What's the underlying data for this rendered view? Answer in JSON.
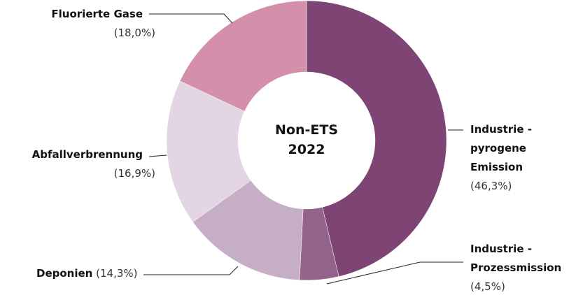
{
  "chart_data": {
    "type": "donut",
    "title": "Non-ETS 2022",
    "categories": [
      "Industrie - pyrogene Emission",
      "Industrie - Prozessmission",
      "Deponien",
      "Abfallverbrennung",
      "Fluorierte Gase"
    ],
    "values": [
      46.3,
      4.5,
      14.3,
      16.9,
      18.0
    ],
    "value_labels": [
      "(46,3%)",
      "(4,5%)",
      "(14,3%)",
      "(16,9%)",
      "(18,0%)"
    ],
    "colors": [
      "#7d4474",
      "#93638a",
      "#c5aec6",
      "#e3d5e4",
      "#d48fab"
    ]
  }
}
